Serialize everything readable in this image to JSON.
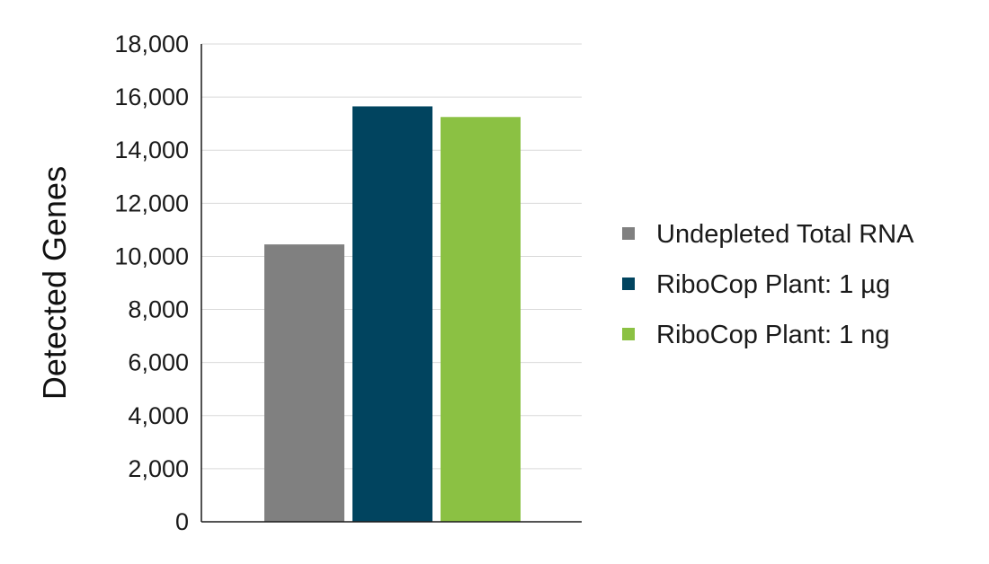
{
  "chart_data": {
    "type": "bar",
    "title": "",
    "xlabel": "",
    "ylabel": "Detected Genes",
    "ylim": [
      0,
      18000
    ],
    "yticks": [
      0,
      2000,
      4000,
      6000,
      8000,
      10000,
      12000,
      14000,
      16000,
      18000
    ],
    "ytick_labels": [
      "0",
      "2,000",
      "4,000",
      "6,000",
      "8,000",
      "10,000",
      "12,000",
      "14,000",
      "16,000",
      "18,000"
    ],
    "grid": true,
    "legend_position": "right",
    "series": [
      {
        "name": "Undepleted Total RNA",
        "value": 10450,
        "color": "#808080"
      },
      {
        "name": "RiboCop Plant: 1 µg",
        "value": 15650,
        "color": "#01445f"
      },
      {
        "name": "RiboCop Plant: 1 ng",
        "value": 15250,
        "color": "#8bc143"
      }
    ]
  }
}
